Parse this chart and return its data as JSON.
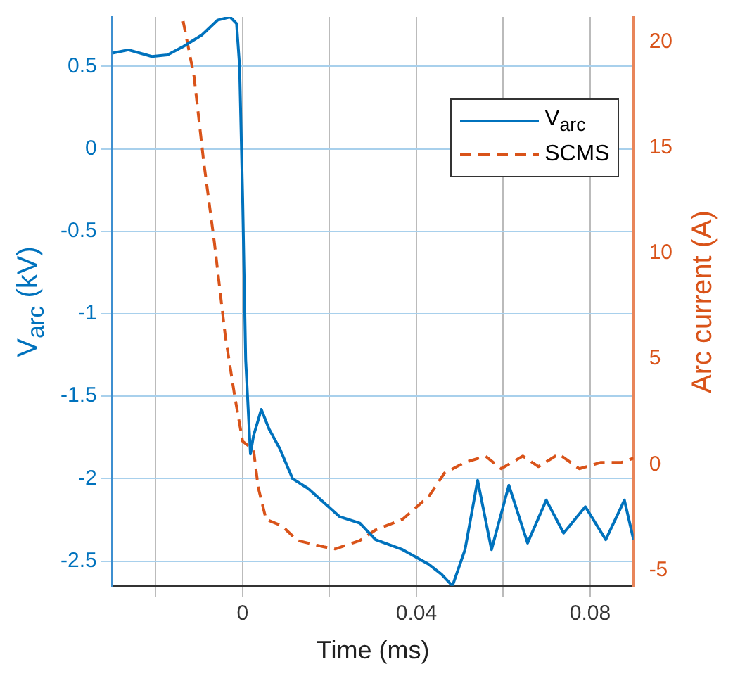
{
  "chart_data": {
    "type": "line",
    "xlabel": "Time (ms)",
    "ylabel": "V$_{arc}$ (kV)",
    "y2label": "Arc current (A)",
    "xlim": [
      -0.03,
      0.09
    ],
    "xticks": [
      {
        "value": -0.02,
        "label": null
      },
      0,
      {
        "value": 0.02,
        "label": null
      },
      0.04,
      {
        "value": 0.06,
        "label": null
      },
      0.08
    ],
    "ylim": [
      -2.65,
      0.8
    ],
    "yticks": [
      -2.5,
      -2,
      -1.5,
      -1,
      -0.5,
      0,
      0.5
    ],
    "y2lim": [
      -5.75,
      21.2
    ],
    "y2ticks": [
      -5,
      0,
      5,
      10,
      15,
      20
    ],
    "grid": true,
    "legend": "top right",
    "series": [
      {
        "name": "V$_{arc}$",
        "color": "#0072bd",
        "line_style": "solid",
        "x": [
          -0.03,
          -0.0263,
          -0.0209,
          -0.0173,
          -0.0137,
          -0.0094,
          -0.0058,
          -0.0029,
          -0.0014,
          -0.0007,
          0,
          0.0007,
          0.0018,
          0.0025,
          0.0043,
          0.0061,
          0.0086,
          0.0115,
          0.0151,
          0.0223,
          0.027,
          0.0306,
          0.0368,
          0.0429,
          0.0458,
          0.0483,
          0.0512,
          0.0541,
          0.0573,
          0.0613,
          0.0656,
          0.0699,
          0.0739,
          0.0789,
          0.0836,
          0.0879,
          0.09
        ],
        "values": [
          0.58,
          0.6,
          0.56,
          0.57,
          0.62,
          0.69,
          0.78,
          0.8,
          0.76,
          0.5,
          -0.3,
          -1.28,
          -1.85,
          -1.74,
          -1.58,
          -1.7,
          -1.82,
          -2.0,
          -2.06,
          -2.23,
          -2.27,
          -2.37,
          -2.43,
          -2.52,
          -2.58,
          -2.65,
          -2.43,
          -2.01,
          -2.43,
          -2.04,
          -2.39,
          -2.13,
          -2.33,
          -2.17,
          -2.37,
          -2.13,
          -2.37
        ]
      },
      {
        "name": "SCMS",
        "color": "#d95319",
        "line_style": "dashed",
        "axis": "y2",
        "x": [
          -0.0137,
          -0.0112,
          -0.009,
          -0.0065,
          -0.004,
          -0.0018,
          0,
          0.0025,
          0.0036,
          0.0054,
          0.009,
          0.0126,
          0.0187,
          0.0213,
          0.027,
          0.0306,
          0.0368,
          0.0429,
          0.0465,
          0.0512,
          0.0559,
          0.0595,
          0.0645,
          0.0681,
          0.0728,
          0.0775,
          0.0825,
          0.0872,
          0.09
        ],
        "values": [
          21,
          18.4,
          14.4,
          10.5,
          6.1,
          3.2,
          1.1,
          0.7,
          -1.1,
          -2.6,
          -2.9,
          -3.6,
          -3.9,
          -4.0,
          -3.6,
          -3.1,
          -2.6,
          -1.5,
          -0.4,
          0.1,
          0.4,
          -0.2,
          0.4,
          -0.1,
          0.5,
          -0.2,
          0.1,
          0.1,
          0.3
        ]
      }
    ]
  }
}
